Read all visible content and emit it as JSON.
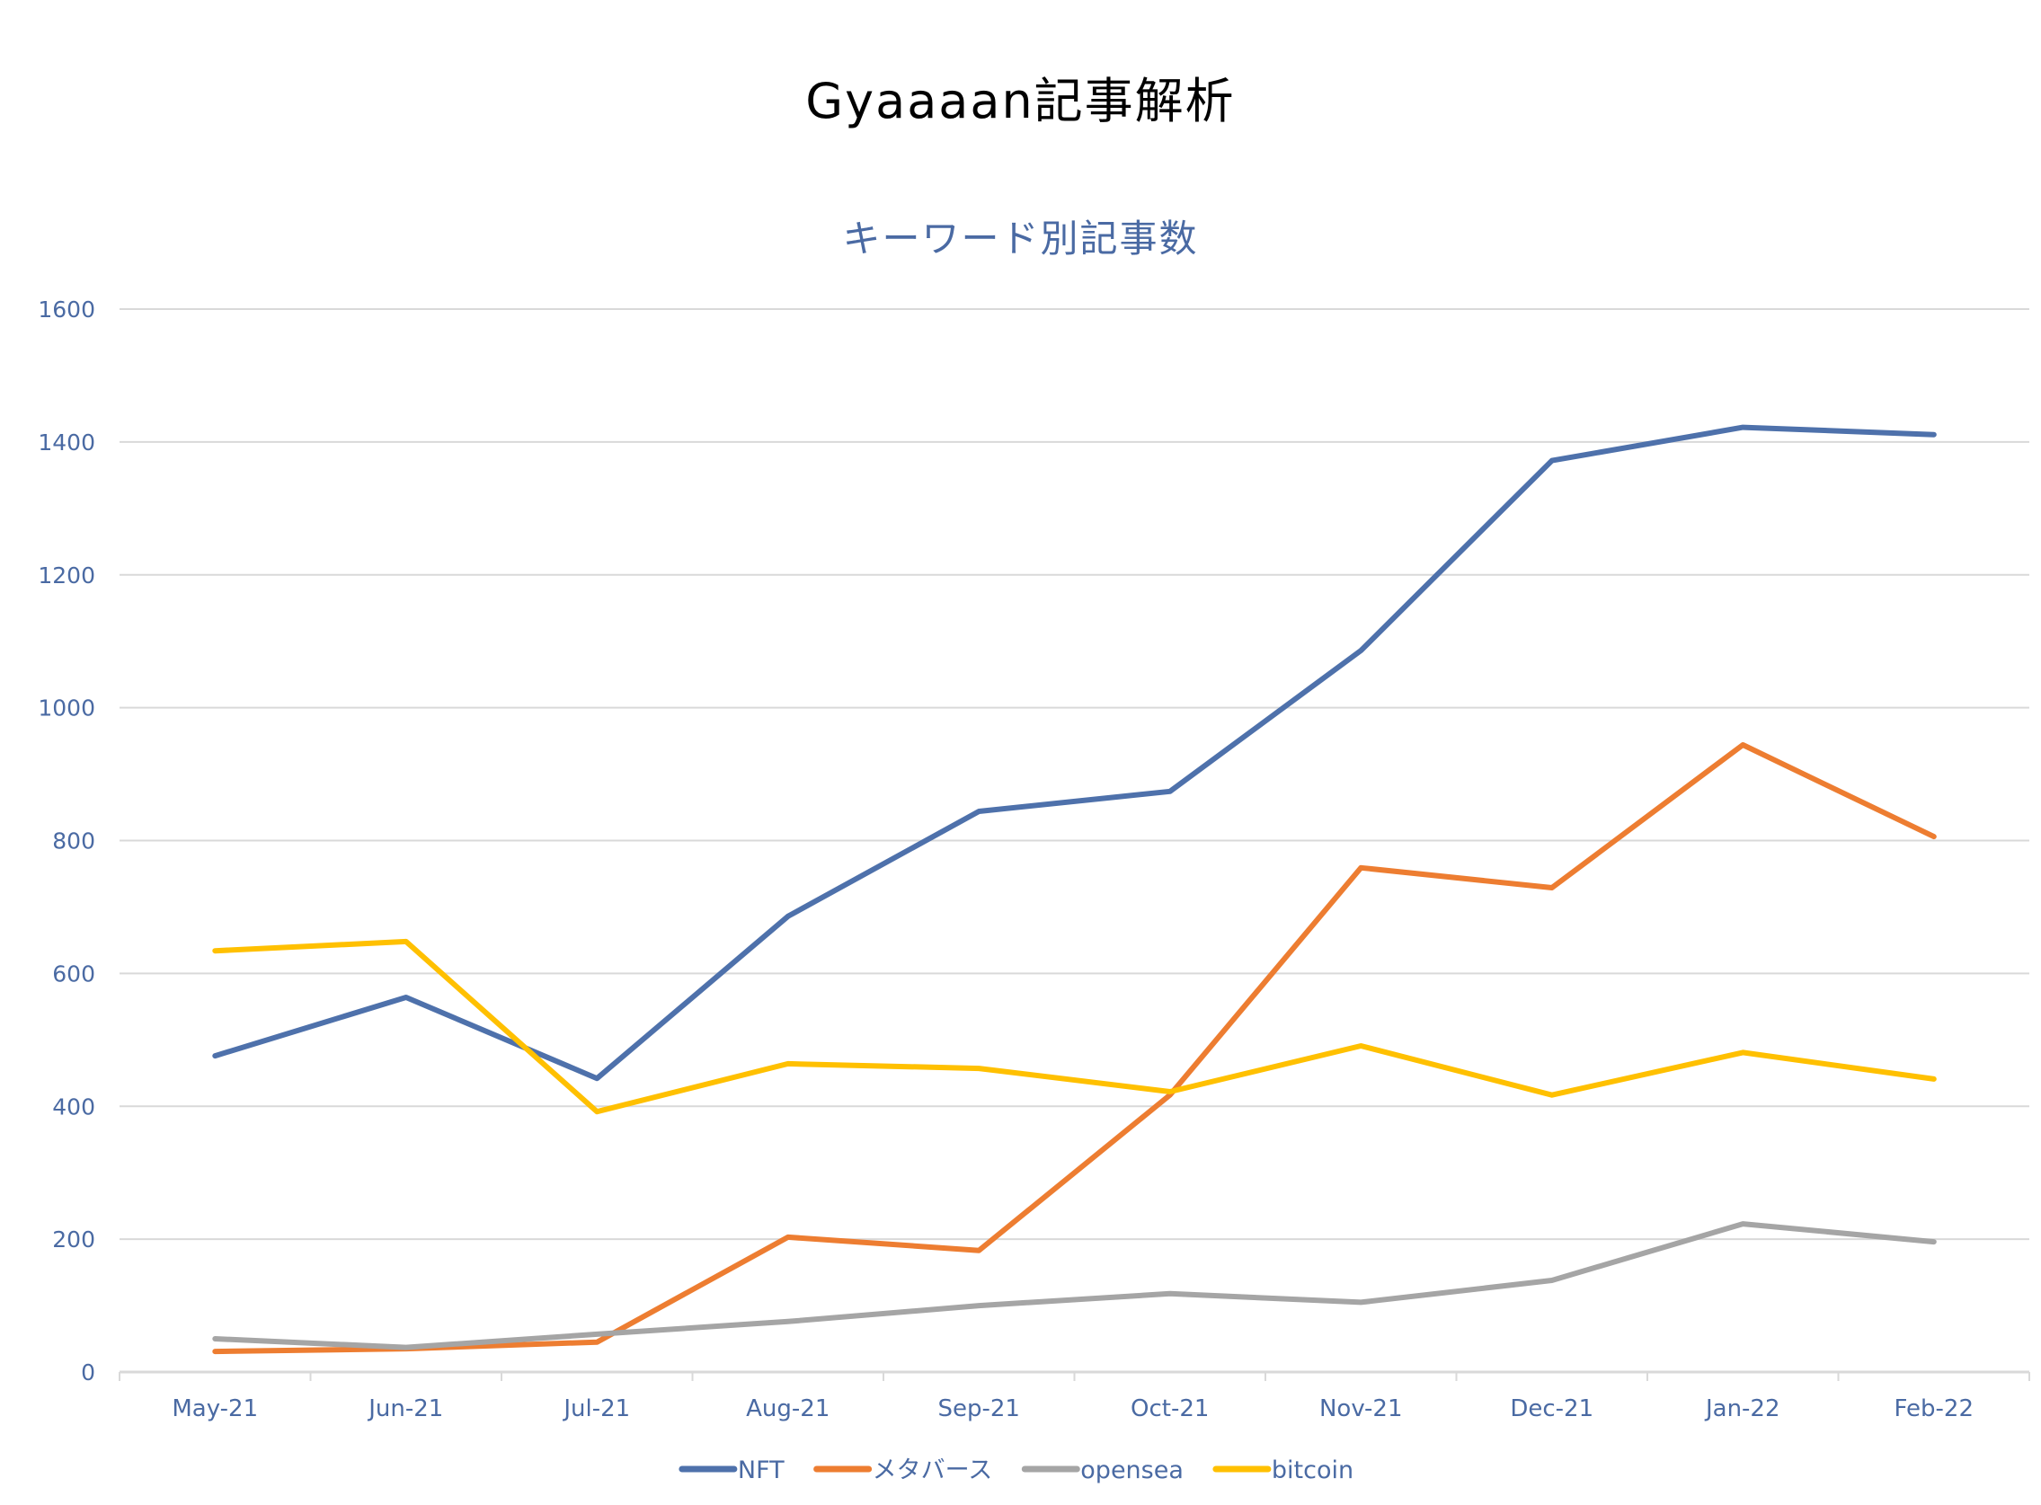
{
  "titles": {
    "main": "Gyaaaan記事解析",
    "subtitle": "キーワード別記事数"
  },
  "colors": {
    "NFT": "#4e71ab",
    "metaverse": "#ed7d31",
    "opensea": "#a5a5a5",
    "bitcoin": "#ffc000",
    "gridline": "#d9d9d9",
    "axis_text": "#4a6aa3"
  },
  "chart_data": {
    "type": "line",
    "title": "Gyaaaan記事解析",
    "subtitle": "キーワード別記事数",
    "xlabel": "",
    "ylabel": "",
    "ylim": [
      0,
      1600
    ],
    "yticks": [
      0,
      200,
      400,
      600,
      800,
      1000,
      1200,
      1400,
      1600
    ],
    "grid": true,
    "legend_position": "bottom",
    "categories": [
      "May-21",
      "Jun-21",
      "Jul-21",
      "Aug-21",
      "Sep-21",
      "Oct-21",
      "Nov-21",
      "Dec-21",
      "Jan-22",
      "Feb-22"
    ],
    "series": [
      {
        "name": "NFT",
        "color": "#4e71ab",
        "values": [
          476,
          564,
          442,
          686,
          844,
          874,
          1086,
          1372,
          1422,
          1411
        ]
      },
      {
        "name": "メタバース",
        "color": "#ed7d31",
        "values": [
          31,
          35,
          45,
          203,
          183,
          417,
          759,
          729,
          944,
          806
        ]
      },
      {
        "name": "opensea",
        "color": "#a5a5a5",
        "values": [
          50,
          37,
          57,
          76,
          100,
          118,
          105,
          138,
          223,
          196
        ]
      },
      {
        "name": "bitcoin",
        "color": "#ffc000",
        "values": [
          634,
          648,
          392,
          464,
          457,
          422,
          491,
          417,
          481,
          441
        ]
      }
    ]
  }
}
